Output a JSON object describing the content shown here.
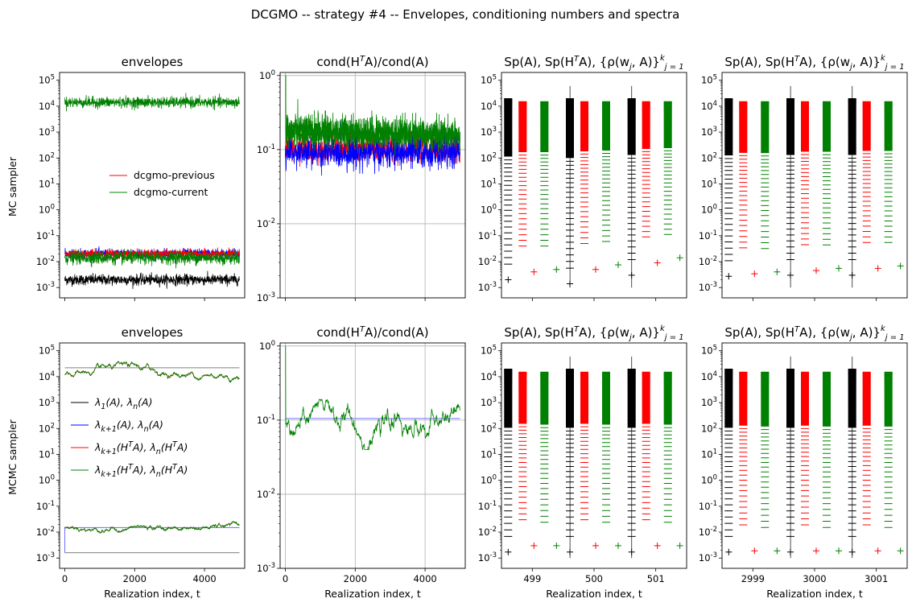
{
  "figure": {
    "suptitle": "DCGMO -- strategy #4 -- Envelopes, conditioning numbers and spectra",
    "row_labels": [
      "MC sampler",
      "MCMC sampler"
    ],
    "xlabel": "Realization index, t"
  },
  "titles": {
    "envelopes": "envelopes",
    "cond_main": "cond(H",
    "cond_sup": "T",
    "cond_tail": "A)/cond(A)",
    "spec_main": "Sp(A), Sp(H",
    "spec_sup": "T",
    "spec_mid": "A), {ρ(w",
    "spec_sub_j": "j",
    "spec_tail": ", A)}",
    "spec_sup_k": "k",
    "spec_sub_j1": "j = 1"
  },
  "legend_top": [
    "dcgmo-previous",
    "dcgmo-current"
  ],
  "legend_bottom": [
    {
      "main": "λ",
      "sub": "1",
      "mid": "(A), λ",
      "sub2": "n",
      "tail": "(A)",
      "color": "#000000"
    },
    {
      "main": "λ",
      "sub": "k+1",
      "mid": "(A), λ",
      "sub2": "n",
      "tail": "(A)",
      "color": "#0000ff"
    },
    {
      "main": "λ",
      "sub": "k+1",
      "mid": "(H",
      "sup": "T",
      "mid2": "A), λ",
      "sub2": "n",
      "tail2": "(H",
      "sup2": "T",
      "tail": "A)",
      "color": "#ff0000"
    },
    {
      "main": "λ",
      "sub": "k+1",
      "mid": "(H",
      "sup": "T",
      "mid2": "A), λ",
      "sub2": "n",
      "tail2": "(H",
      "sup2": "T",
      "tail": "A)",
      "color": "#008000"
    }
  ],
  "colors": {
    "black": "#000000",
    "blue": "#0000ff",
    "red": "#ff0000",
    "green": "#008000",
    "grid": "#b0b0b0",
    "ref": "#808080"
  },
  "chart_data": [
    {
      "id": "mc-envelopes",
      "type": "line",
      "title": "envelopes",
      "yscale": "log",
      "xlim": [
        -150,
        5150
      ],
      "ylim": [
        0.0004,
        200000
      ],
      "x_ticks": [
        0,
        2000,
        4000
      ],
      "x_tick_labels_shown": false,
      "series": [
        {
          "name": "",
          "color": "#008000",
          "band_upper": [
            4000,
            40000
          ],
          "typical": 14000
        },
        {
          "name": "",
          "color": "#0000ff",
          "band_lower": [
            0.01,
            0.04
          ],
          "typical": 0.02
        },
        {
          "name": "dcgmo-previous",
          "color": "#ff0000",
          "band_lower": [
            0.012,
            0.03
          ],
          "typical": 0.02
        },
        {
          "name": "dcgmo-current",
          "color": "#008000",
          "band_lower": [
            0.007,
            0.025
          ],
          "typical": 0.014
        },
        {
          "name": "",
          "color": "#000000",
          "band_lower": [
            0.0012,
            0.003
          ],
          "typical": 0.002
        }
      ]
    },
    {
      "id": "mc-cond",
      "type": "line",
      "yscale": "log",
      "grid": true,
      "xlim": [
        -150,
        5150
      ],
      "ylim": [
        0.001,
        1.1
      ],
      "x_ticks": [
        0,
        2000,
        4000
      ],
      "x_tick_labels_shown": false,
      "series": [
        {
          "color": "#008000",
          "start": 1.0,
          "range": [
            0.09,
            0.35
          ],
          "typical": 0.18
        },
        {
          "color": "#ff0000",
          "range": [
            0.07,
            0.16
          ],
          "typical": 0.1
        },
        {
          "color": "#0000ff",
          "range": [
            0.06,
            0.14
          ],
          "typical": 0.09
        }
      ]
    },
    {
      "id": "mc-spectra-1",
      "type": "scatter",
      "yscale": "log",
      "ylim": [
        0.0004,
        200000
      ],
      "x_ticks": [
        499,
        500,
        501
      ],
      "x_tick_labels_shown": false,
      "xlim": [
        498.5,
        501.5
      ],
      "groups": [
        {
          "t": 499,
          "min_plus": 0.002,
          "red_plus": 0.004,
          "green_plus": 0.005
        },
        {
          "t": 500,
          "min_plus": 0.0014,
          "red_plus": 0.005,
          "green_plus": 0.0075
        },
        {
          "t": 501,
          "min_plus": 0.003,
          "red_plus": 0.009,
          "green_plus": 0.014
        }
      ]
    },
    {
      "id": "mc-spectra-2",
      "type": "scatter",
      "yscale": "log",
      "ylim": [
        0.0004,
        200000
      ],
      "x_ticks": [
        2999,
        3000,
        3001
      ],
      "x_tick_labels_shown": false,
      "xlim": [
        2998.5,
        3001.5
      ],
      "groups": [
        {
          "t": 2999,
          "min_plus": 0.0027,
          "red_plus": 0.0034,
          "green_plus": 0.004
        },
        {
          "t": 3000,
          "min_plus": 0.003,
          "red_plus": 0.0045,
          "green_plus": 0.0055
        },
        {
          "t": 3001,
          "min_plus": 0.003,
          "red_plus": 0.0055,
          "green_plus": 0.0068
        }
      ]
    },
    {
      "id": "mcmc-envelopes",
      "type": "line",
      "title": "envelopes",
      "yscale": "log",
      "xlim": [
        -150,
        5150
      ],
      "ylim": [
        0.0004,
        200000
      ],
      "x_ticks": [
        0,
        2000,
        4000
      ],
      "x_tick_labels": [
        "0",
        "2000",
        "4000"
      ],
      "series": [
        {
          "name": "λ1(A), λn(A)",
          "color": "#000000",
          "upper": 22000,
          "lower": 0.0016
        },
        {
          "name": "λk+1(A), λn(A)",
          "color": "#0000ff",
          "upper": 22000,
          "lower": 0.015
        },
        {
          "name": "λk+1(HTA), λn(HTA)",
          "color": "#ff0000",
          "upper_range": [
            8000,
            40000
          ],
          "lower_range": [
            0.008,
            0.022
          ]
        },
        {
          "name": "λk+1(HTA), λn(HTA)",
          "color": "#008000",
          "upper_range": [
            8000,
            40000
          ],
          "lower_range": [
            0.008,
            0.022
          ]
        }
      ]
    },
    {
      "id": "mcmc-cond",
      "type": "line",
      "yscale": "log",
      "grid": true,
      "xlim": [
        -150,
        5150
      ],
      "ylim": [
        0.001,
        1.1
      ],
      "x_ticks": [
        0,
        2000,
        4000
      ],
      "x_tick_labels": [
        "0",
        "2000",
        "4000"
      ],
      "series": [
        {
          "color": "#0000ff",
          "constant": 0.105
        },
        {
          "color": "#008000",
          "start": 1.0,
          "range": [
            0.04,
            0.19
          ],
          "typical": 0.08
        }
      ]
    },
    {
      "id": "mcmc-spectra-1",
      "type": "scatter",
      "yscale": "log",
      "ylim": [
        0.0004,
        200000
      ],
      "x_ticks": [
        499,
        500,
        501
      ],
      "x_tick_labels": [
        "499",
        "500",
        "501"
      ],
      "xlim": [
        498.5,
        501.5
      ],
      "groups": [
        {
          "t": 499,
          "min_plus": 0.0017,
          "red_plus": 0.003,
          "green_plus": 0.003
        },
        {
          "t": 500,
          "min_plus": 0.0017,
          "red_plus": 0.003,
          "green_plus": 0.003
        },
        {
          "t": 501,
          "min_plus": 0.0017,
          "red_plus": 0.003,
          "green_plus": 0.003
        }
      ]
    },
    {
      "id": "mcmc-spectra-2",
      "type": "scatter",
      "yscale": "log",
      "ylim": [
        0.0004,
        200000
      ],
      "x_ticks": [
        2999,
        3000,
        3001
      ],
      "x_tick_labels": [
        "2999",
        "3000",
        "3001"
      ],
      "xlim": [
        2998.5,
        3001.5
      ],
      "groups": [
        {
          "t": 2999,
          "min_plus": 0.0017,
          "red_plus": 0.0019,
          "green_plus": 0.0019
        },
        {
          "t": 3000,
          "min_plus": 0.0017,
          "red_plus": 0.0019,
          "green_plus": 0.0019
        },
        {
          "t": 3001,
          "min_plus": 0.0017,
          "red_plus": 0.0019,
          "green_plus": 0.0019
        }
      ]
    }
  ]
}
